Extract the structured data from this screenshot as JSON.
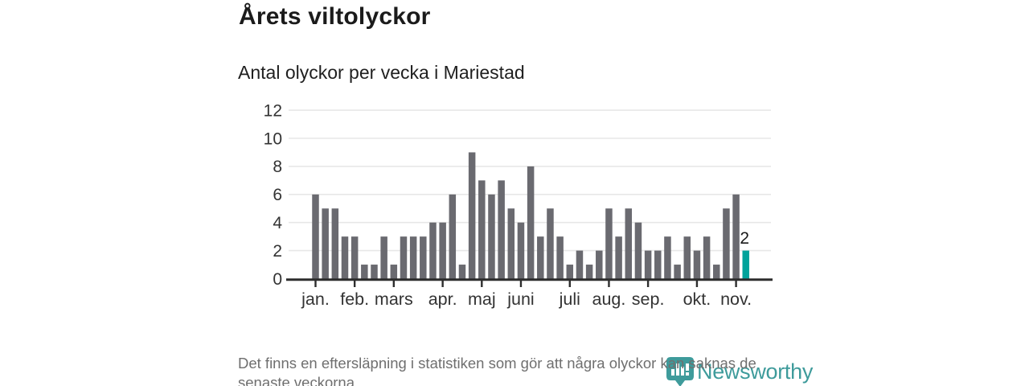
{
  "header": {
    "title": "Årets viltolyckor",
    "subtitle": "Antal olyckor per vecka i Mariestad"
  },
  "chart_data": {
    "type": "bar",
    "title": "Årets viltolyckor",
    "subtitle": "Antal olyckor per vecka i Mariestad",
    "x_unit": "vecka",
    "weeks": 45,
    "values": [
      6,
      5,
      5,
      3,
      3,
      1,
      1,
      3,
      1,
      3,
      3,
      3,
      4,
      4,
      6,
      1,
      9,
      7,
      6,
      7,
      5,
      4,
      8,
      3,
      5,
      3,
      1,
      2,
      1,
      2,
      5,
      3,
      5,
      4,
      2,
      2,
      3,
      1,
      3,
      2,
      3,
      1,
      5,
      6,
      2
    ],
    "month_ticks": [
      {
        "label": "jan.",
        "index": 0
      },
      {
        "label": "feb.",
        "index": 4
      },
      {
        "label": "mars",
        "index": 8
      },
      {
        "label": "apr.",
        "index": 13
      },
      {
        "label": "maj",
        "index": 17
      },
      {
        "label": "juni",
        "index": 21
      },
      {
        "label": "juli",
        "index": 26
      },
      {
        "label": "aug.",
        "index": 30
      },
      {
        "label": "sep.",
        "index": 34
      },
      {
        "label": "okt.",
        "index": 39
      },
      {
        "label": "nov.",
        "index": 43
      }
    ],
    "yticks": [
      0,
      2,
      4,
      6,
      8,
      10,
      12
    ],
    "ylim": [
      0,
      12
    ],
    "grid": true,
    "legend": "none",
    "bar_color": "#6a6a70",
    "grid_color": "#e7e7e7",
    "axis_color": "#2d2d2d",
    "label_color": "#333333",
    "highlight": {
      "index": 44,
      "value": 2,
      "label": "2",
      "color": "#00a39b"
    }
  },
  "footer": {
    "line1": "Det finns en eftersläpning i statistiken som gör att några olyckor kan saknas de",
    "line2": "senaste veckorna."
  },
  "logo": {
    "name": "Newsworthy",
    "color": "#3e9b9b"
  }
}
